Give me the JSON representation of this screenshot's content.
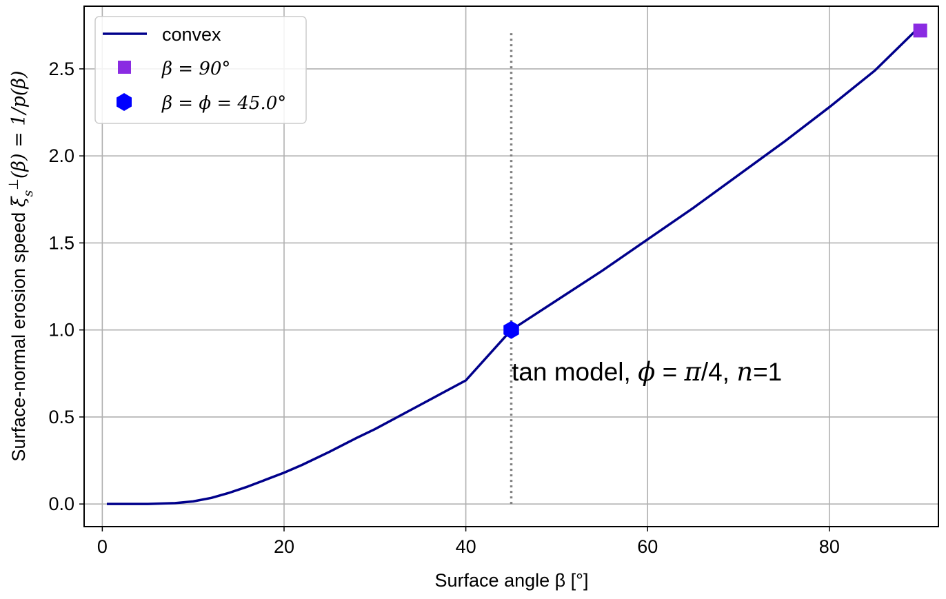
{
  "chart_data": {
    "type": "line",
    "xlabel": "Surface angle  β  [°]",
    "ylabel": "Surface-normal erosion speed  ξs⊥(β) = 1/p(β)",
    "ylabel_text": "Surface-normal erosion speed",
    "ylabel_math": {
      "xi": "ξ",
      "sub": "s",
      "sup": "⊥",
      "rest": "(β) = 1/p(β)"
    },
    "xlim": [
      -2,
      92
    ],
    "ylim": [
      -0.13,
      2.86
    ],
    "x_ticks": [
      0,
      20,
      40,
      60,
      80
    ],
    "y_ticks": [
      0.0,
      0.5,
      1.0,
      1.5,
      2.0,
      2.5
    ],
    "x_tick_labels": [
      "0",
      "20",
      "40",
      "60",
      "80"
    ],
    "y_tick_labels": [
      "0.0",
      "0.5",
      "1.0",
      "1.5",
      "2.0",
      "2.5"
    ],
    "grid": true,
    "legend_position": "top-left",
    "series": [
      {
        "name": "convex",
        "kind": "line",
        "color": "#00008b",
        "x": [
          0.5,
          5,
          8,
          10,
          12,
          14,
          16,
          18,
          20,
          22,
          25,
          28,
          30,
          35,
          40,
          45,
          50,
          55,
          60,
          65,
          70,
          75,
          80,
          85,
          89.5
        ],
        "y": [
          0.0,
          0.0,
          0.005,
          0.015,
          0.035,
          0.065,
          0.1,
          0.14,
          0.18,
          0.225,
          0.3,
          0.38,
          0.43,
          0.57,
          0.71,
          1.0,
          1.17,
          1.34,
          1.52,
          1.7,
          1.89,
          2.08,
          2.28,
          2.49,
          2.72
        ]
      },
      {
        "name": "β = 90°",
        "kind": "marker",
        "marker": "square",
        "color": "#8a2be2",
        "x": [
          90
        ],
        "y": [
          2.72
        ]
      },
      {
        "name": "β = ϕ = 45.0°",
        "kind": "marker",
        "marker": "hexagon",
        "color": "#0000ff",
        "x": [
          45
        ],
        "y": [
          1.0
        ]
      }
    ],
    "vline": {
      "x": 45,
      "y0": 0.0,
      "y1": 2.72,
      "style": "dotted",
      "color": "#808080"
    },
    "annotation": {
      "text": "tan model, ϕ = π/4, n=1",
      "parts": {
        "lead": "tan model, ",
        "phi": "ϕ",
        "eq": " = ",
        "pi": "π",
        "frac": "/4, ",
        "n": "n",
        "tail": "=1"
      },
      "x": 45,
      "y": 0.75
    }
  }
}
